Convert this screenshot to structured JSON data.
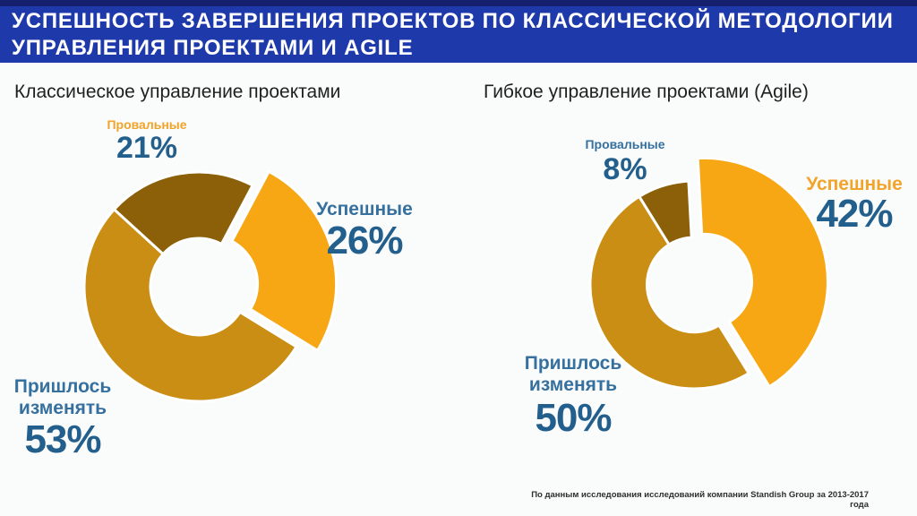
{
  "header": {
    "title_line1": "УСПЕШНОСТЬ ЗАВЕРШЕНИЯ ПРОЕКТОВ ПО КЛАССИЧЕСКОЙ МЕТОДОЛОГИИ",
    "title_line2": "УПРАВЛЕНИЯ ПРОЕКТАМИ И AGILE"
  },
  "footer": {
    "source_note": "По данным исследования исследований компании Standish Group за 2013-2017 года"
  },
  "colors": {
    "page_bg": "#FAFBFB",
    "banner_bg": "#1E39A9",
    "banner_top_strip": "#161F6E",
    "banner_text": "#FFFFFF",
    "subtitle_text": "#1F1F1F",
    "number_blue": "#235F8C",
    "label_blue": "#35709F",
    "label_orange": "#F2A329",
    "footer_text": "#2E2E2E",
    "gap_stroke": "#FFFFFF"
  },
  "chart_data": [
    {
      "type": "pie",
      "variant": "donut",
      "title": "Классическое управление проектами",
      "unit": "percent",
      "categories": [
        "Успешные",
        "Пришлось изменять",
        "Провальные"
      ],
      "keys": [
        "successful",
        "had-to-change",
        "failed"
      ],
      "values": [
        26,
        53,
        21
      ],
      "value_labels": [
        "26%",
        "53%",
        "21%"
      ],
      "slice_colors": [
        "#F7A714",
        "#C98E13",
        "#8B6008"
      ],
      "exploded": [
        true,
        false,
        false
      ],
      "start_angle_deg": 28,
      "legend": "none",
      "label_positions": [
        "right",
        "bottom-left",
        "top"
      ]
    },
    {
      "type": "pie",
      "variant": "donut",
      "title": "Гибкое управление проектами (Agile)",
      "unit": "percent",
      "categories": [
        "Успешные",
        "Пришлось изменять",
        "Провальные"
      ],
      "keys": [
        "successful",
        "had-to-change",
        "failed"
      ],
      "values": [
        42,
        50,
        8
      ],
      "value_labels": [
        "42%",
        "50%",
        "8%"
      ],
      "slice_colors": [
        "#F7A714",
        "#C98E13",
        "#8B6008"
      ],
      "exploded": [
        true,
        false,
        false
      ],
      "start_angle_deg": -3,
      "legend": "none",
      "label_positions": [
        "right",
        "bottom-left",
        "top"
      ]
    }
  ]
}
